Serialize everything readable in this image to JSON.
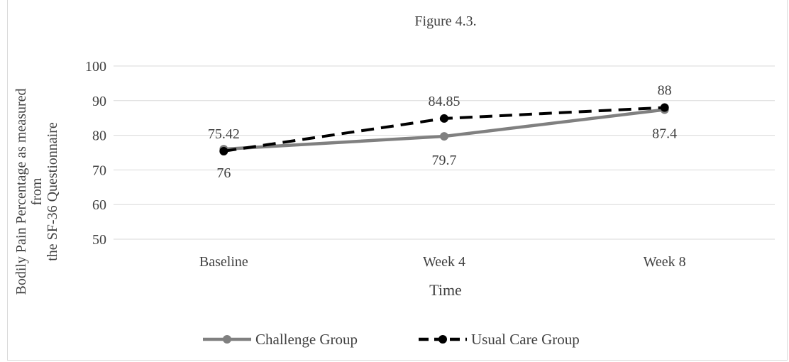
{
  "chart_data": {
    "type": "line",
    "title": "Figure 4.3.",
    "xlabel": "Time",
    "ylabel_lines": [
      "Bodily Pain Percentage as measured",
      "from",
      "the  SF-36 Questionnaire"
    ],
    "categories": [
      "Baseline",
      "Week 4",
      "Week 8"
    ],
    "ylim": [
      50,
      100
    ],
    "yticks": [
      50,
      60,
      70,
      80,
      90,
      100
    ],
    "grid": true,
    "legend": "bottom",
    "series": [
      {
        "name": "Challenge Group",
        "values": [
          76,
          79.7,
          87.4
        ],
        "labels": [
          "76",
          "79.7",
          "87.4"
        ],
        "color": "#808080",
        "style": "solid",
        "label_position": "below"
      },
      {
        "name": "Usual Care Group",
        "values": [
          75.42,
          84.85,
          88
        ],
        "labels": [
          "75.42",
          "84.85",
          "88"
        ],
        "color": "#000000",
        "style": "dashed",
        "label_position": "above"
      }
    ]
  }
}
